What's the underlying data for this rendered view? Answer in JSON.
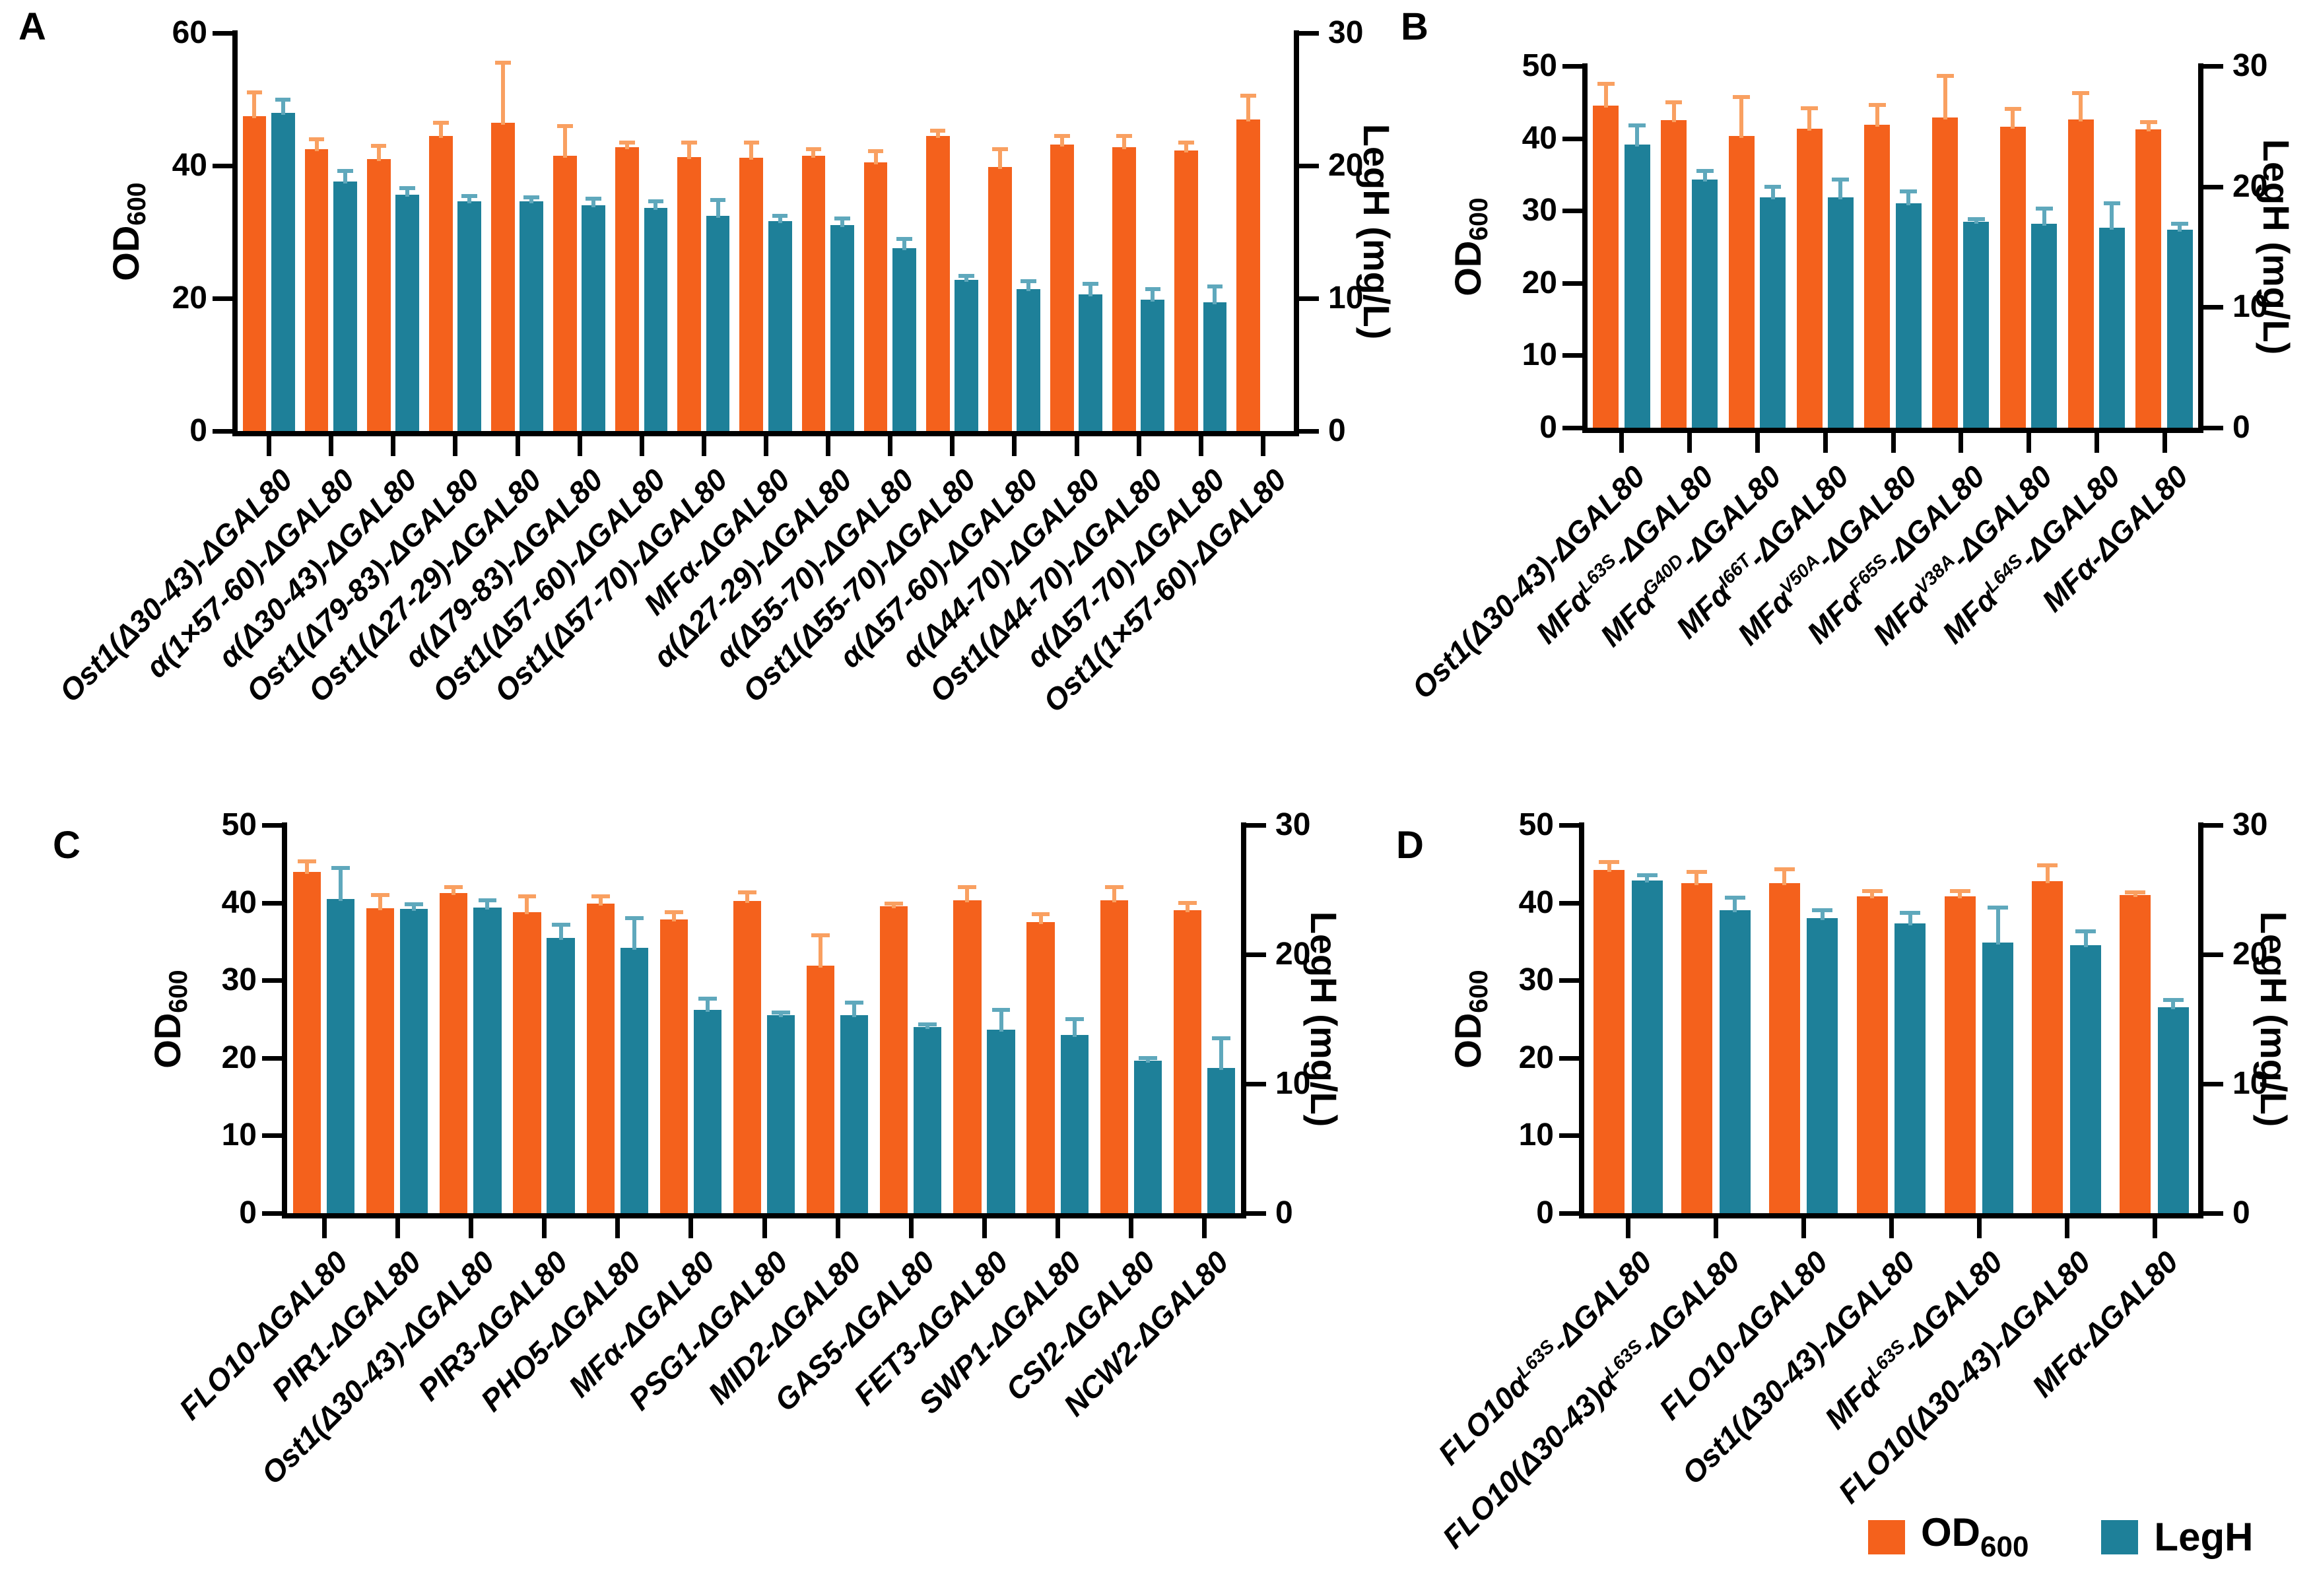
{
  "legend": {
    "od": {
      "main": "OD",
      "sub": "600"
    },
    "legh": {
      "main": "LegH"
    }
  },
  "colors": {
    "od": "#F4611C",
    "od_error": "#F9A061",
    "legh": "#1E8099",
    "legh_error": "#5FA8BC",
    "axis": "#000000",
    "background": "#FFFFFF",
    "text": "#000000"
  },
  "chart_data": [
    {
      "panel": "A",
      "type": "bar",
      "title": "",
      "xlabel": "",
      "grid": false,
      "error_bars": true,
      "left_axis": {
        "label_main": "OD",
        "label_sub": "600",
        "min": 0,
        "max": 60,
        "ticks": [
          0,
          20,
          40,
          60
        ]
      },
      "right_axis": {
        "label": "LegH (mg/L)",
        "min": 0,
        "max": 30,
        "ticks": [
          0,
          10,
          20,
          30
        ]
      },
      "categories": [
        {
          "segments": [
            {
              "t": "Ost1(Δ30-43)-ΔGAL80"
            }
          ]
        },
        {
          "segments": [
            {
              "t": "α(1×57-60)-ΔGAL80"
            }
          ]
        },
        {
          "segments": [
            {
              "t": "α(Δ30-43)-ΔGAL80"
            }
          ]
        },
        {
          "segments": [
            {
              "t": "Ost1(Δ79-83)-ΔGAL80"
            }
          ]
        },
        {
          "segments": [
            {
              "t": "Ost1(Δ27-29)-ΔGAL80"
            }
          ]
        },
        {
          "segments": [
            {
              "t": "α(Δ79-83)-ΔGAL80"
            }
          ]
        },
        {
          "segments": [
            {
              "t": "Ost1(Δ57-60)-ΔGAL80"
            }
          ]
        },
        {
          "segments": [
            {
              "t": "Ost1(Δ57-70)-ΔGAL80"
            }
          ]
        },
        {
          "segments": [
            {
              "t": "MFα-ΔGAL80"
            }
          ]
        },
        {
          "segments": [
            {
              "t": "α(Δ27-29)-ΔGAL80"
            }
          ]
        },
        {
          "segments": [
            {
              "t": "α(Δ55-70)-ΔGAL80"
            }
          ]
        },
        {
          "segments": [
            {
              "t": "Ost1(Δ55-70)-ΔGAL80"
            }
          ]
        },
        {
          "segments": [
            {
              "t": "α(Δ57-60)-ΔGAL80"
            }
          ]
        },
        {
          "segments": [
            {
              "t": "α(Δ44-70)-ΔGAL80"
            }
          ]
        },
        {
          "segments": [
            {
              "t": "Ost1(Δ44-70)-ΔGAL80"
            }
          ]
        },
        {
          "segments": [
            {
              "t": "α(Δ57-70)-ΔGAL80"
            }
          ]
        },
        {
          "segments": [
            {
              "t": "Ost1(1×57-60)-ΔGAL80"
            }
          ]
        }
      ],
      "series": [
        {
          "name": "OD600",
          "axis": "left",
          "color": "#F4611C",
          "error_color": "#F9A061",
          "values": [
            47.5,
            42.5,
            41.0,
            44.5,
            46.5,
            41.5,
            42.8,
            41.3,
            41.2,
            41.5,
            40.5,
            44.5,
            39.8,
            43.2,
            42.8,
            42.3,
            47.0
          ],
          "errors": [
            3.5,
            1.5,
            2.0,
            2.0,
            9.0,
            4.5,
            0.7,
            2.2,
            2.3,
            1.0,
            1.7,
            0.8,
            2.7,
            1.3,
            1.7,
            1.2,
            3.5
          ]
        },
        {
          "name": "LegH",
          "axis": "right",
          "color": "#1E8099",
          "error_color": "#5FA8BC",
          "values": [
            24.0,
            18.8,
            17.8,
            17.3,
            17.3,
            17.0,
            16.8,
            16.2,
            15.8,
            15.5,
            13.8,
            11.4,
            10.7,
            10.3,
            9.9,
            9.7,
            null
          ],
          "errors": [
            1.0,
            0.8,
            0.5,
            0.4,
            0.3,
            0.5,
            0.5,
            1.2,
            0.4,
            0.5,
            0.7,
            0.3,
            0.6,
            0.8,
            0.8,
            1.2,
            null
          ]
        }
      ]
    },
    {
      "panel": "B",
      "type": "bar",
      "title": "",
      "xlabel": "",
      "grid": false,
      "error_bars": true,
      "left_axis": {
        "label_main": "OD",
        "label_sub": "600",
        "min": 0,
        "max": 50,
        "ticks": [
          0,
          10,
          20,
          30,
          40,
          50
        ]
      },
      "right_axis": {
        "label": "LegH (mg/L)",
        "min": 0,
        "max": 30,
        "ticks": [
          0,
          10,
          20,
          30
        ]
      },
      "categories": [
        {
          "segments": [
            {
              "t": "Ost1(Δ30-43)-ΔGAL80"
            }
          ]
        },
        {
          "segments": [
            {
              "t": "MFα"
            },
            {
              "t": "L63S",
              "sup": true
            },
            {
              "t": "-ΔGAL80"
            }
          ]
        },
        {
          "segments": [
            {
              "t": "MFα"
            },
            {
              "t": "G40D",
              "sup": true
            },
            {
              "t": "-ΔGAL80"
            }
          ]
        },
        {
          "segments": [
            {
              "t": "MFα"
            },
            {
              "t": "I66T",
              "sup": true
            },
            {
              "t": "-ΔGAL80"
            }
          ]
        },
        {
          "segments": [
            {
              "t": "MFα"
            },
            {
              "t": "V50A",
              "sup": true
            },
            {
              "t": "-ΔGAL80"
            }
          ]
        },
        {
          "segments": [
            {
              "t": "MFα"
            },
            {
              "t": "F65S",
              "sup": true
            },
            {
              "t": "-ΔGAL80"
            }
          ]
        },
        {
          "segments": [
            {
              "t": "MFα"
            },
            {
              "t": "V38A",
              "sup": true
            },
            {
              "t": "-ΔGAL80"
            }
          ]
        },
        {
          "segments": [
            {
              "t": "MFα"
            },
            {
              "t": "L64S",
              "sup": true
            },
            {
              "t": "-ΔGAL80"
            }
          ]
        },
        {
          "segments": [
            {
              "t": "MFα-ΔGAL80"
            }
          ]
        }
      ],
      "series": [
        {
          "name": "OD600",
          "axis": "left",
          "color": "#F4611C",
          "error_color": "#F9A061",
          "values": [
            44.5,
            42.5,
            40.3,
            41.3,
            41.9,
            42.9,
            41.6,
            42.6,
            41.2
          ],
          "errors": [
            3.0,
            2.5,
            5.4,
            2.9,
            2.7,
            5.7,
            2.5,
            3.7,
            1.0
          ]
        },
        {
          "name": "LegH",
          "axis": "right",
          "color": "#1E8099",
          "error_color": "#5FA8BC",
          "values": [
            23.5,
            20.6,
            19.1,
            19.1,
            18.6,
            17.1,
            16.9,
            16.6,
            16.4
          ],
          "errors": [
            1.6,
            0.7,
            0.9,
            1.5,
            1.0,
            0.2,
            1.3,
            2.0,
            0.5
          ]
        }
      ]
    },
    {
      "panel": "C",
      "type": "bar",
      "title": "",
      "xlabel": "",
      "grid": false,
      "error_bars": true,
      "left_axis": {
        "label_main": "OD",
        "label_sub": "600",
        "min": 0,
        "max": 50,
        "ticks": [
          0,
          10,
          20,
          30,
          40,
          50
        ]
      },
      "right_axis": {
        "label": "LegH (mg/L)",
        "min": 0,
        "max": 30,
        "ticks": [
          0,
          10,
          20,
          30
        ]
      },
      "categories": [
        {
          "segments": [
            {
              "t": "FLO10-ΔGAL80"
            }
          ]
        },
        {
          "segments": [
            {
              "t": "PIR1-ΔGAL80"
            }
          ]
        },
        {
          "segments": [
            {
              "t": "Ost1(Δ30-43)-ΔGAL80"
            }
          ]
        },
        {
          "segments": [
            {
              "t": "PIR3-ΔGAL80"
            }
          ]
        },
        {
          "segments": [
            {
              "t": "PHO5-ΔGAL80"
            }
          ]
        },
        {
          "segments": [
            {
              "t": "MFα-ΔGAL80"
            }
          ]
        },
        {
          "segments": [
            {
              "t": "PSG1-ΔGAL80"
            }
          ]
        },
        {
          "segments": [
            {
              "t": "MID2-ΔGAL80"
            }
          ]
        },
        {
          "segments": [
            {
              "t": "GAS5-ΔGAL80"
            }
          ]
        },
        {
          "segments": [
            {
              "t": "FET3-ΔGAL80"
            }
          ]
        },
        {
          "segments": [
            {
              "t": "SWP1-ΔGAL80"
            }
          ]
        },
        {
          "segments": [
            {
              "t": "CSI2-ΔGAL80"
            }
          ]
        },
        {
          "segments": [
            {
              "t": "NCW2-ΔGAL80"
            }
          ]
        }
      ],
      "series": [
        {
          "name": "OD600",
          "axis": "left",
          "color": "#F4611C",
          "error_color": "#F9A061",
          "values": [
            44.0,
            39.3,
            41.2,
            38.8,
            39.9,
            37.8,
            40.2,
            31.9,
            39.5,
            40.3,
            37.5,
            40.3,
            39.0
          ],
          "errors": [
            1.3,
            1.7,
            0.8,
            2.0,
            0.9,
            1.0,
            1.1,
            3.9,
            0.4,
            1.7,
            1.0,
            1.7,
            1.0
          ]
        },
        {
          "name": "LegH",
          "axis": "right",
          "color": "#1E8099",
          "error_color": "#5FA8BC",
          "values": [
            24.3,
            23.5,
            23.6,
            21.3,
            20.5,
            15.7,
            15.3,
            15.3,
            14.4,
            14.2,
            13.8,
            11.8,
            11.2
          ],
          "errors": [
            2.4,
            0.4,
            0.6,
            1.0,
            2.3,
            0.9,
            0.2,
            1.0,
            0.2,
            1.5,
            1.2,
            0.2,
            2.3
          ]
        }
      ]
    },
    {
      "panel": "D",
      "type": "bar",
      "title": "",
      "xlabel": "",
      "grid": false,
      "error_bars": true,
      "left_axis": {
        "label_main": "OD",
        "label_sub": "600",
        "min": 0,
        "max": 50,
        "ticks": [
          0,
          10,
          20,
          30,
          40,
          50
        ]
      },
      "right_axis": {
        "label": "LegH (mg/L)",
        "min": 0,
        "max": 30,
        "ticks": [
          0,
          10,
          20,
          30
        ]
      },
      "categories": [
        {
          "segments": [
            {
              "t": "FLO10α"
            },
            {
              "t": "L63S",
              "sup": true
            },
            {
              "t": "-ΔGAL80"
            }
          ]
        },
        {
          "segments": [
            {
              "t": "FLO10(Δ30-43)α"
            },
            {
              "t": "L63S",
              "sup": true
            },
            {
              "t": "-ΔGAL80"
            }
          ]
        },
        {
          "segments": [
            {
              "t": "FLO10-ΔGAL80"
            }
          ]
        },
        {
          "segments": [
            {
              "t": "Ost1(Δ30-43)-ΔGAL80"
            }
          ]
        },
        {
          "segments": [
            {
              "t": "MFα"
            },
            {
              "t": "L63S",
              "sup": true
            },
            {
              "t": "-ΔGAL80"
            }
          ]
        },
        {
          "segments": [
            {
              "t": "FLO10(Δ30-43)-ΔGAL80"
            }
          ]
        },
        {
          "segments": [
            {
              "t": "MFα-ΔGAL80"
            }
          ]
        }
      ],
      "series": [
        {
          "name": "OD600",
          "axis": "left",
          "color": "#F4611C",
          "error_color": "#F9A061",
          "values": [
            44.2,
            42.5,
            42.5,
            40.8,
            40.8,
            42.8,
            41.0
          ],
          "errors": [
            1.0,
            1.5,
            1.8,
            0.7,
            0.7,
            2.0,
            0.3
          ]
        },
        {
          "name": "LegH",
          "axis": "right",
          "color": "#1E8099",
          "error_color": "#5FA8BC",
          "values": [
            25.7,
            23.4,
            22.8,
            22.4,
            20.9,
            20.7,
            15.9
          ],
          "errors": [
            0.4,
            1.0,
            0.6,
            0.8,
            2.7,
            1.1,
            0.6
          ]
        }
      ]
    }
  ]
}
